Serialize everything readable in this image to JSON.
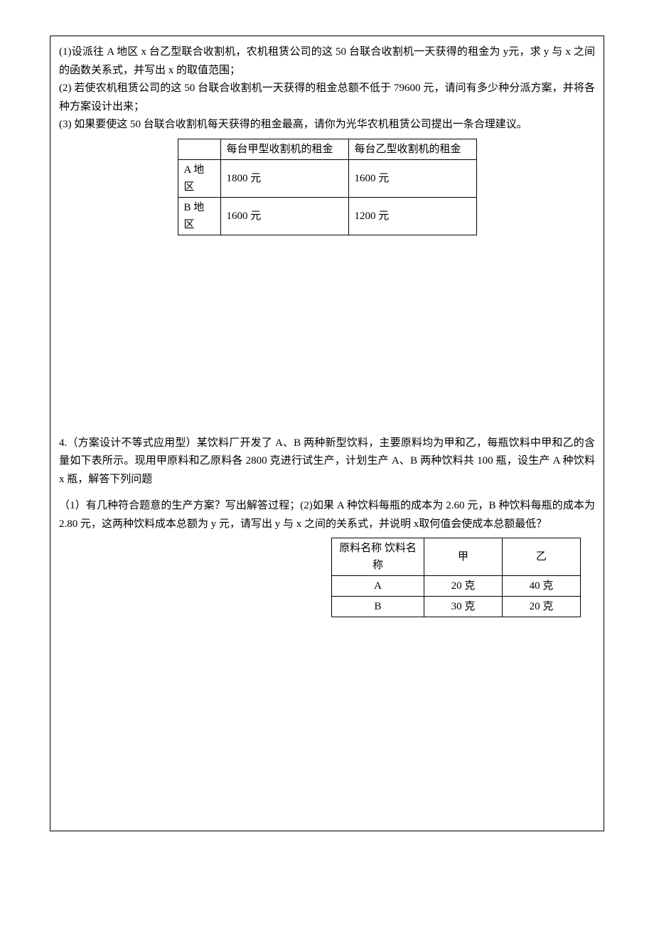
{
  "problem3": {
    "line1": "(1)设派往 A 地区 x 台乙型联合收割机，农机租赁公司的这 50 台联合收割机一天获得的租金为 y元，求 y 与 x 之间的函数关系式，并写出 x 的取值范围；",
    "line2": "(2) 若使农机租赁公司的这 50 台联合收割机一天获得的租金总额不低于 79600 元，请问有多少种分派方案，并将各种方案设计出来；",
    "line3": "(3) 如果要使这 50 台联合收割机每天获得的租金最高，请你为光华农机租赁公司提出一条合理建议。",
    "table": {
      "headers": [
        "",
        "每台甲型收割机的租金",
        "每台乙型收割机的租金"
      ],
      "rows": [
        [
          "A 地区",
          "1800 元",
          "1600 元"
        ],
        [
          "B 地区",
          "1600 元",
          "1200 元"
        ]
      ],
      "col_widths": [
        "60px",
        "180px",
        "180px"
      ]
    }
  },
  "problem4": {
    "intro": "4.（方案设计不等式应用型）某饮料厂开发了 A、B 两种新型饮料，主要原料均为甲和乙，每瓶饮料中甲和乙的含量如下表所示。现用甲原料和乙原料各 2800 克进行试生产，计划生产 A、B 两种饮料共 100 瓶，设生产 A 种饮料 x 瓶，解答下列问题",
    "q": "（1）有几种符合题意的生产方案？写出解答过程；(2)如果 A 种饮料每瓶的成本为 2.60 元，B 种饮料每瓶的成本为 2.80 元，这两种饮料成本总额为 y 元，请写出 y 与 x 之间的关系式，并说明 x取何值会使成本总额最低？",
    "table": {
      "header_cell": "原料名称  饮料名称",
      "cols": [
        "甲",
        "乙"
      ],
      "rows": [
        [
          "A",
          "20 克",
          "40 克"
        ],
        [
          "B",
          "30 克",
          "20 克"
        ]
      ],
      "col_widths": [
        "130px",
        "110px",
        "110px"
      ]
    }
  },
  "colors": {
    "text": "#000000",
    "border": "#000000",
    "bg": "#ffffff"
  }
}
